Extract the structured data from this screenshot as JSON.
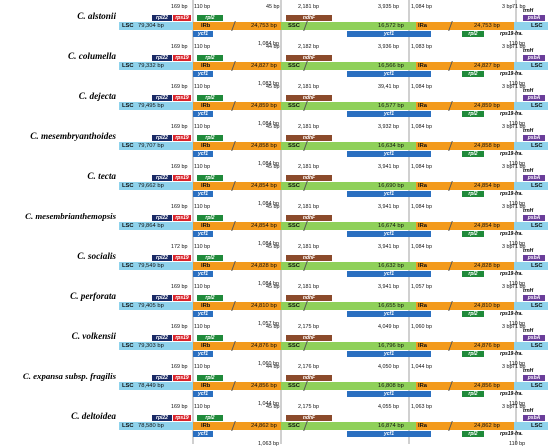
{
  "labels": {
    "lsc": "LSC",
    "irb": "IRb",
    "ssc": "SSC",
    "ira": "IRa",
    "rpl22": "rpl22",
    "rps19": "rps19",
    "rpl2": "rpl2",
    "ndhF": "ndhF",
    "ycf1": "ycf1",
    "psbA": "psbA",
    "trnH": "trnH",
    "rps19fra": "rps19-fra."
  },
  "rows": [
    {
      "species": "C. alstonii",
      "lsc": "79,304 bp",
      "irb": "24,753 bp",
      "ssc": "16,572 bp",
      "ira": "24,753 bp",
      "b1": "169 bp",
      "b2": "110 bp",
      "b3": "45 bp",
      "b4": "2,181 bp",
      "b5": "3,935 bp",
      "b6": "1,084 bp",
      "b7": "3 bp",
      "b8": "71 bp",
      "b9": "1,084 bp",
      "b10": "110 bp"
    },
    {
      "species": "C. columella",
      "lsc": "79,332 bp",
      "irb": "24,827 bp",
      "ssc": "16,566 bp",
      "ira": "24,827 bp",
      "b1": "169 bp",
      "b2": "110 bp",
      "b3": "44 bp",
      "b4": "2,182 bp",
      "b5": "3,936 bp",
      "b6": "1,083 bp",
      "b7": "3 bp",
      "b8": "71 bp",
      "b9": "1,083 bp",
      "b10": "110 bp"
    },
    {
      "species": "C. dejecta",
      "lsc": "79,495 bp",
      "irb": "24,859 bp",
      "ssc": "16,577 bp",
      "ira": "24,859 bp",
      "b1": "169 bp",
      "b2": "110 bp",
      "b3": "45 bp",
      "b4": "2,181 bp",
      "b5": "39,41 bp",
      "b6": "1,084 bp",
      "b7": "3 bp",
      "b8": "71 bp",
      "b9": "1,084 bp",
      "b10": "110 bp"
    },
    {
      "species": "C. mesembryanthoides",
      "lsc": "79,707 bp",
      "irb": "24,858 bp",
      "ssc": "16,634 bp",
      "ira": "24,858 bp",
      "b1": "169 bp",
      "b2": "110 bp",
      "b3": "45 bp",
      "b4": "2,181 bp",
      "b5": "3,932 bp",
      "b6": "1,084 bp",
      "b7": "3 bp",
      "b8": "71 bp",
      "b9": "1,084 bp",
      "b10": "110 bp"
    },
    {
      "species": "C. tecta",
      "lsc": "79,662 bp",
      "irb": "24,854 bp",
      "ssc": "16,690 bp",
      "ira": "24,854 bp",
      "b1": "169 bp",
      "b2": "110 bp",
      "b3": "45 bp",
      "b4": "2,181 bp",
      "b5": "3,941 bp",
      "b6": "1,084 bp",
      "b7": "3 bp",
      "b8": "71 bp",
      "b9": "1,084 bp",
      "b10": "110 bp"
    },
    {
      "species": "C. mesembrianthemopsis",
      "lsc": "79,864 bp",
      "irb": "24,854 bp",
      "ssc": "16,674 bp",
      "ira": "24,854 bp",
      "b1": "169 bp",
      "b2": "110 bp",
      "b3": "45 bp",
      "b4": "2,181 bp",
      "b5": "3,941 bp",
      "b6": "1,084 bp",
      "b7": "3 bp",
      "b8": "71 bp",
      "b9": "1,084 bp",
      "b10": "110 bp"
    },
    {
      "species": "C. socialis",
      "lsc": "79,549 bp",
      "irb": "24,828 bp",
      "ssc": "16,632 bp",
      "ira": "24,828 bp",
      "b1": "172 bp",
      "b2": "110 bp",
      "b3": "45 bp",
      "b4": "2,181 bp",
      "b5": "3,941 bp",
      "b6": "1,084 bp",
      "b7": "3 bp",
      "b8": "71 bp",
      "b9": "1,084 bp",
      "b10": "110 bp"
    },
    {
      "species": "C. perforata",
      "lsc": "79,405 bp",
      "irb": "24,810 bp",
      "ssc": "16,655 bp",
      "ira": "24,810 bp",
      "b1": "169 bp",
      "b2": "110 bp",
      "b3": "45 bp",
      "b4": "2,181 bp",
      "b5": "3,941 bp",
      "b6": "1,057 bp",
      "b7": "3 bp",
      "b8": "71 bp",
      "b9": "1,057 bp",
      "b10": "110 bp"
    },
    {
      "species": "C. volkensii",
      "lsc": "79,303 bp",
      "irb": "24,876 bp",
      "ssc": "16,796 bp",
      "ira": "24,876 bp",
      "b1": "169 bp",
      "b2": "110 bp",
      "b3": "45 bp",
      "b4": "2,175 bp",
      "b5": "4,049 bp",
      "b6": "1,060 bp",
      "b7": "3 bp",
      "b8": "71 bp",
      "b9": "1,060 bp",
      "b10": "110 bp"
    },
    {
      "species": "C. expansa subsp. fragilis",
      "lsc": "78,449 bp",
      "irb": "24,856 bp",
      "ssc": "16,808 bp",
      "ira": "24,856 bp",
      "b1": "169 bp",
      "b2": "110 bp",
      "b3": "44 bp",
      "b4": "2,176 bp",
      "b5": "4,050 bp",
      "b6": "1,044 bp",
      "b7": "3 bp",
      "b8": "71 bp",
      "b9": "1,044 bp",
      "b10": "110 bp"
    },
    {
      "species": "C. deltoidea",
      "lsc": "78,580 bp",
      "irb": "24,862 bp",
      "ssc": "16,874 bp",
      "ira": "24,862 bp",
      "b1": "169 bp",
      "b2": "110 bp",
      "b3": "45 bp",
      "b4": "2,175 bp",
      "b5": "4,055 bp",
      "b6": "1,063 bp",
      "b7": "3 bp",
      "b8": "71 bp",
      "b9": "1,063 bp",
      "b10": "110 bp"
    }
  ]
}
